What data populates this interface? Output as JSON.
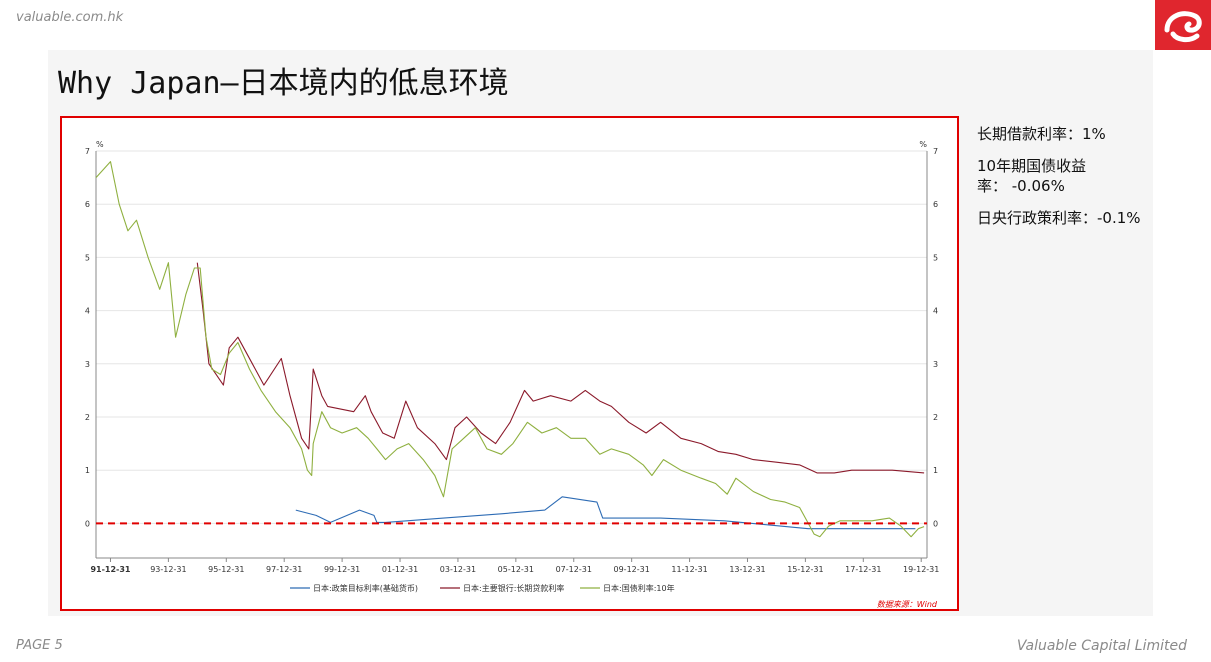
{
  "header": {
    "url": "valuable.com.hk",
    "title": "Why Japan—日本境内的低息环境"
  },
  "side": {
    "items": [
      "长期借款利率：1%",
      "10年期国债收益率： -0.06%",
      "日央行政策利率：-0.1%"
    ]
  },
  "footer": {
    "page": "PAGE 5",
    "company": "Valuable Capital Limited"
  },
  "colors": {
    "policy": "#2e6cb5",
    "loan": "#8b1a2b",
    "jgb": "#8fb040",
    "zero_line": "#e00000"
  },
  "chart_data": {
    "type": "line",
    "title": "",
    "xlabel": "",
    "ylabel": "%",
    "ylabel_right": "%",
    "source": "数据来源：Wind",
    "ylim": [
      -0.65,
      7
    ],
    "xlim": [
      1991.5,
      2020.2
    ],
    "y_ticks": [
      0,
      1,
      2,
      3,
      4,
      5,
      6,
      7
    ],
    "x_ticks": [
      {
        "label": "91-12-31",
        "x": 1992.0
      },
      {
        "label": "93-12-31",
        "x": 1994.0
      },
      {
        "label": "95-12-31",
        "x": 1996.0
      },
      {
        "label": "97-12-31",
        "x": 1998.0
      },
      {
        "label": "99-12-31",
        "x": 2000.0
      },
      {
        "label": "01-12-31",
        "x": 2002.0
      },
      {
        "label": "03-12-31",
        "x": 2004.0
      },
      {
        "label": "05-12-31",
        "x": 2006.0
      },
      {
        "label": "07-12-31",
        "x": 2008.0
      },
      {
        "label": "09-12-31",
        "x": 2010.0
      },
      {
        "label": "11-12-31",
        "x": 2012.0
      },
      {
        "label": "13-12-31",
        "x": 2014.0
      },
      {
        "label": "15-12-31",
        "x": 2016.0
      },
      {
        "label": "17-12-31",
        "x": 2018.0
      },
      {
        "label": "19-12-31",
        "x": 2020.0
      }
    ],
    "grid": true,
    "legend_position": "bottom",
    "series": [
      {
        "name": "日本:政策目标利率(基础货币)",
        "points": [
          [
            1998.4,
            0.25
          ],
          [
            1999.1,
            0.15
          ],
          [
            1999.6,
            0.02
          ],
          [
            2000.6,
            0.25
          ],
          [
            2001.1,
            0.15
          ],
          [
            2001.2,
            0.02
          ],
          [
            2001.5,
            0.02
          ],
          [
            2003.5,
            0.1
          ],
          [
            2005.5,
            0.18
          ],
          [
            2007.0,
            0.25
          ],
          [
            2007.6,
            0.5
          ],
          [
            2008.8,
            0.4
          ],
          [
            2009.0,
            0.1
          ],
          [
            2011.0,
            0.1
          ],
          [
            2013.2,
            0.05
          ],
          [
            2016.1,
            -0.1
          ],
          [
            2019.8,
            -0.1
          ]
        ]
      },
      {
        "name": "日本:主要银行:长期贷款利率",
        "points": [
          [
            1995.0,
            4.9
          ],
          [
            1995.2,
            4.0
          ],
          [
            1995.4,
            3.0
          ],
          [
            1995.9,
            2.6
          ],
          [
            1996.1,
            3.3
          ],
          [
            1996.4,
            3.5
          ],
          [
            1996.9,
            3.0
          ],
          [
            1997.3,
            2.6
          ],
          [
            1997.9,
            3.1
          ],
          [
            1998.2,
            2.4
          ],
          [
            1998.6,
            1.6
          ],
          [
            1998.85,
            1.4
          ],
          [
            1999.0,
            2.9
          ],
          [
            1999.3,
            2.4
          ],
          [
            1999.5,
            2.2
          ],
          [
            2000.4,
            2.1
          ],
          [
            2000.8,
            2.4
          ],
          [
            2001.0,
            2.1
          ],
          [
            2001.4,
            1.7
          ],
          [
            2001.8,
            1.6
          ],
          [
            2002.2,
            2.3
          ],
          [
            2002.6,
            1.8
          ],
          [
            2003.2,
            1.5
          ],
          [
            2003.6,
            1.2
          ],
          [
            2003.9,
            1.8
          ],
          [
            2004.3,
            2.0
          ],
          [
            2004.8,
            1.7
          ],
          [
            2005.3,
            1.5
          ],
          [
            2005.8,
            1.9
          ],
          [
            2006.3,
            2.5
          ],
          [
            2006.6,
            2.3
          ],
          [
            2007.2,
            2.4
          ],
          [
            2007.9,
            2.3
          ],
          [
            2008.4,
            2.5
          ],
          [
            2008.9,
            2.3
          ],
          [
            2009.3,
            2.2
          ],
          [
            2009.9,
            1.9
          ],
          [
            2010.5,
            1.7
          ],
          [
            2011.0,
            1.9
          ],
          [
            2011.7,
            1.6
          ],
          [
            2012.4,
            1.5
          ],
          [
            2013.0,
            1.35
          ],
          [
            2013.6,
            1.3
          ],
          [
            2014.2,
            1.2
          ],
          [
            2015.0,
            1.15
          ],
          [
            2015.8,
            1.1
          ],
          [
            2016.4,
            0.95
          ],
          [
            2017.0,
            0.95
          ],
          [
            2017.6,
            1.0
          ],
          [
            2019.0,
            1.0
          ],
          [
            2020.1,
            0.95
          ]
        ]
      },
      {
        "name": "日本:国债利率:10年",
        "points": [
          [
            1991.5,
            6.5
          ],
          [
            1992.0,
            6.8
          ],
          [
            1992.3,
            6.0
          ],
          [
            1992.6,
            5.5
          ],
          [
            1992.9,
            5.7
          ],
          [
            1993.3,
            5.0
          ],
          [
            1993.7,
            4.4
          ],
          [
            1994.0,
            4.9
          ],
          [
            1994.25,
            3.5
          ],
          [
            1994.6,
            4.3
          ],
          [
            1994.9,
            4.8
          ],
          [
            1995.1,
            4.8
          ],
          [
            1995.3,
            3.5
          ],
          [
            1995.5,
            2.9
          ],
          [
            1995.8,
            2.8
          ],
          [
            1996.1,
            3.2
          ],
          [
            1996.4,
            3.4
          ],
          [
            1996.8,
            2.9
          ],
          [
            1997.2,
            2.5
          ],
          [
            1997.7,
            2.1
          ],
          [
            1998.2,
            1.8
          ],
          [
            1998.6,
            1.4
          ],
          [
            1998.8,
            1.0
          ],
          [
            1998.95,
            0.9
          ],
          [
            1999.0,
            1.5
          ],
          [
            1999.3,
            2.1
          ],
          [
            1999.6,
            1.8
          ],
          [
            2000.0,
            1.7
          ],
          [
            2000.5,
            1.8
          ],
          [
            2000.9,
            1.6
          ],
          [
            2001.2,
            1.4
          ],
          [
            2001.5,
            1.2
          ],
          [
            2001.9,
            1.4
          ],
          [
            2002.3,
            1.5
          ],
          [
            2002.8,
            1.2
          ],
          [
            2003.2,
            0.9
          ],
          [
            2003.5,
            0.5
          ],
          [
            2003.8,
            1.4
          ],
          [
            2004.2,
            1.6
          ],
          [
            2004.6,
            1.8
          ],
          [
            2005.0,
            1.4
          ],
          [
            2005.5,
            1.3
          ],
          [
            2005.9,
            1.5
          ],
          [
            2006.4,
            1.9
          ],
          [
            2006.9,
            1.7
          ],
          [
            2007.4,
            1.8
          ],
          [
            2007.9,
            1.6
          ],
          [
            2008.4,
            1.6
          ],
          [
            2008.9,
            1.3
          ],
          [
            2009.3,
            1.4
          ],
          [
            2009.9,
            1.3
          ],
          [
            2010.4,
            1.1
          ],
          [
            2010.7,
            0.9
          ],
          [
            2011.1,
            1.2
          ],
          [
            2011.7,
            1.0
          ],
          [
            2012.4,
            0.85
          ],
          [
            2012.9,
            0.75
          ],
          [
            2013.3,
            0.55
          ],
          [
            2013.6,
            0.85
          ],
          [
            2014.2,
            0.6
          ],
          [
            2014.8,
            0.45
          ],
          [
            2015.3,
            0.4
          ],
          [
            2015.8,
            0.3
          ],
          [
            2016.1,
            0.0
          ],
          [
            2016.3,
            -0.2
          ],
          [
            2016.5,
            -0.25
          ],
          [
            2016.8,
            -0.05
          ],
          [
            2017.2,
            0.05
          ],
          [
            2017.8,
            0.05
          ],
          [
            2018.3,
            0.05
          ],
          [
            2018.9,
            0.1
          ],
          [
            2019.3,
            -0.05
          ],
          [
            2019.65,
            -0.25
          ],
          [
            2019.9,
            -0.1
          ],
          [
            2020.1,
            -0.06
          ]
        ]
      }
    ]
  }
}
